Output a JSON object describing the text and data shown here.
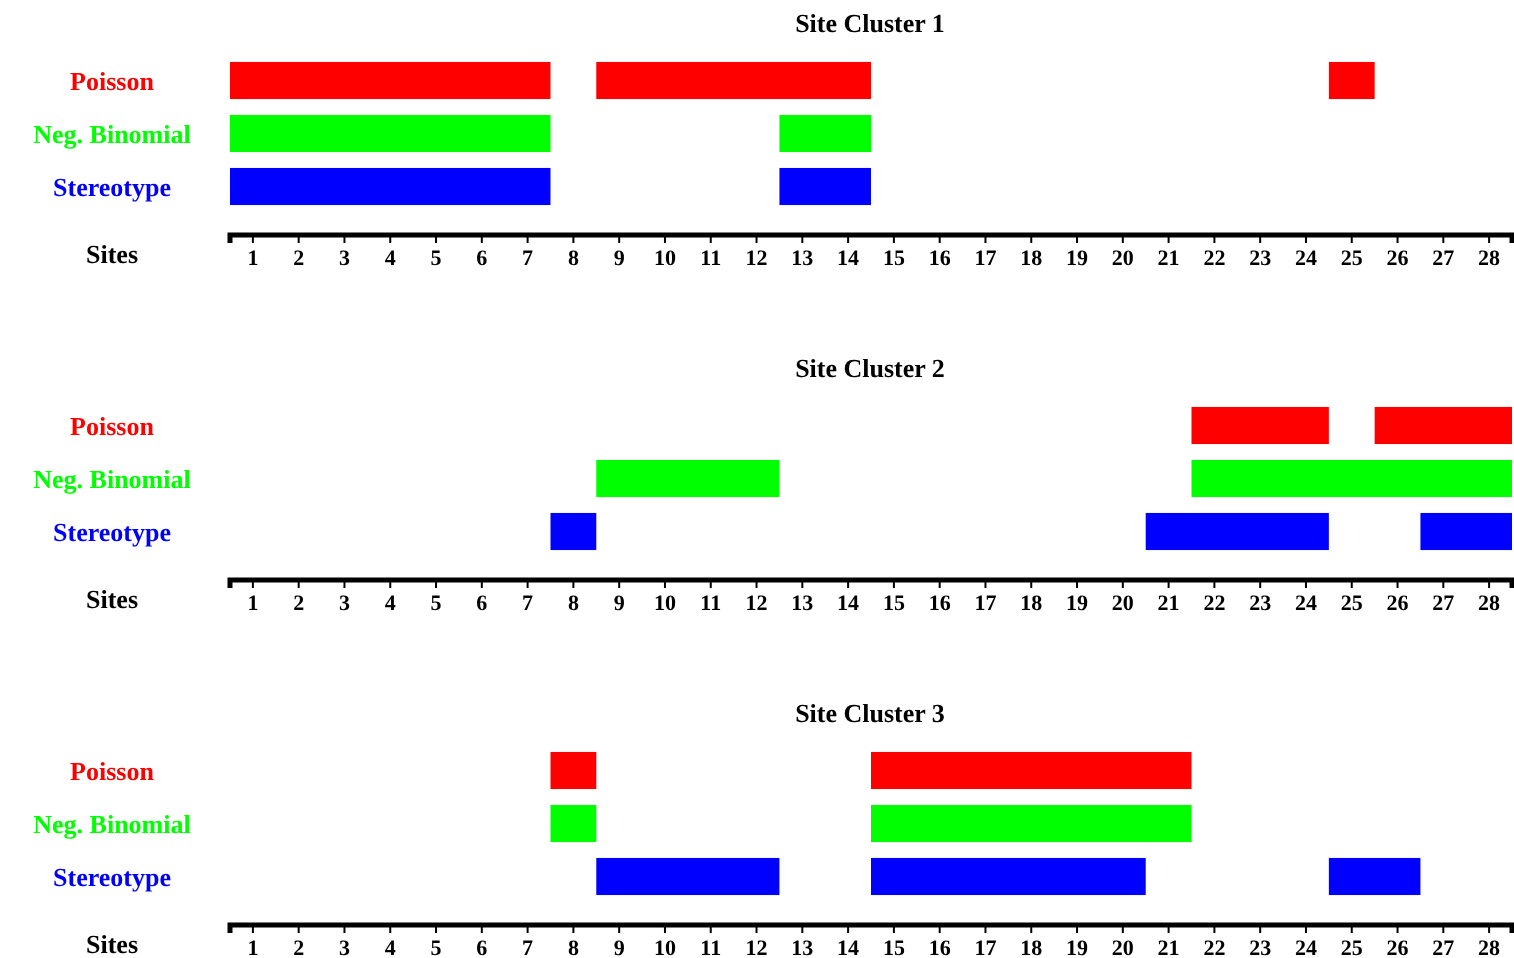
{
  "chart_data": [
    {
      "type": "bar",
      "orientation": "horizontal",
      "title": "Site Cluster 1",
      "xlabel": "Sites",
      "categories": [
        "Poisson",
        "Neg. Binomial",
        "Stereotype"
      ],
      "xlim": [
        0.5,
        28.5
      ],
      "xticks": [
        1,
        2,
        3,
        4,
        5,
        6,
        7,
        8,
        9,
        10,
        11,
        12,
        13,
        14,
        15,
        16,
        17,
        18,
        19,
        20,
        21,
        22,
        23,
        24,
        25,
        26,
        27,
        28
      ],
      "series": [
        {
          "colors": [
            "#ff0000",
            "#00ff00",
            "#0000ff"
          ],
          "base": [
            0.5,
            0.5,
            0.5
          ],
          "values": [
            7,
            7,
            7
          ]
        },
        {
          "colors": [
            "#ff0000",
            "#00ff00",
            "#0000ff"
          ],
          "base": [
            8.5,
            12.5,
            12.5
          ],
          "values": [
            6,
            2,
            2
          ]
        },
        {
          "colors": [
            "#ff0000",
            null,
            null
          ],
          "base": [
            24.5,
            null,
            null
          ],
          "values": [
            1,
            null,
            null
          ]
        }
      ]
    },
    {
      "type": "bar",
      "orientation": "horizontal",
      "title": "Site Cluster 2",
      "xlabel": "Sites",
      "categories": [
        "Poisson",
        "Neg. Binomial",
        "Stereotype"
      ],
      "xlim": [
        0.5,
        28.5
      ],
      "xticks": [
        1,
        2,
        3,
        4,
        5,
        6,
        7,
        8,
        9,
        10,
        11,
        12,
        13,
        14,
        15,
        16,
        17,
        18,
        19,
        20,
        21,
        22,
        23,
        24,
        25,
        26,
        27,
        28
      ],
      "series": [
        {
          "colors": [
            "#ff0000",
            "#00ff00",
            "#0000ff"
          ],
          "base": [
            21.5,
            8.5,
            7.5
          ],
          "values": [
            3,
            4,
            1
          ]
        },
        {
          "colors": [
            "#ff0000",
            "#00ff00",
            "#0000ff"
          ],
          "base": [
            25.5,
            21.5,
            20.5
          ],
          "values": [
            3,
            7,
            4
          ]
        },
        {
          "colors": [
            null,
            null,
            "#0000ff"
          ],
          "base": [
            null,
            null,
            26.5
          ],
          "values": [
            null,
            null,
            2
          ]
        }
      ]
    },
    {
      "type": "bar",
      "orientation": "horizontal",
      "title": "Site Cluster 3",
      "xlabel": "Sites",
      "categories": [
        "Poisson",
        "Neg. Binomial",
        "Stereotype"
      ],
      "xlim": [
        0.5,
        28.5
      ],
      "xticks": [
        1,
        2,
        3,
        4,
        5,
        6,
        7,
        8,
        9,
        10,
        11,
        12,
        13,
        14,
        15,
        16,
        17,
        18,
        19,
        20,
        21,
        22,
        23,
        24,
        25,
        26,
        27,
        28
      ],
      "series": [
        {
          "colors": [
            "#ff0000",
            "#00ff00",
            "#0000ff"
          ],
          "base": [
            7.5,
            7.5,
            8.5
          ],
          "values": [
            1,
            1,
            4
          ]
        },
        {
          "colors": [
            "#ff0000",
            "#00ff00",
            "#0000ff"
          ],
          "base": [
            14.5,
            14.5,
            14.5
          ],
          "values": [
            7,
            7,
            6
          ]
        },
        {
          "colors": [
            null,
            null,
            "#0000ff"
          ],
          "base": [
            null,
            null,
            24.5
          ],
          "values": [
            null,
            null,
            2
          ]
        }
      ]
    }
  ]
}
